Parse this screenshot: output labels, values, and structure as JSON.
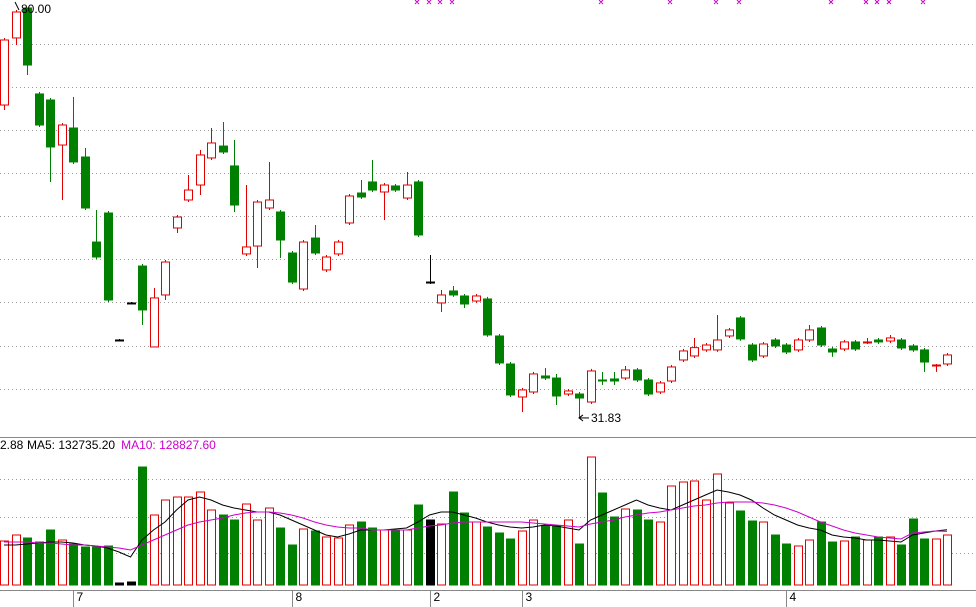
{
  "chart_data": {
    "type": "candlestick",
    "categories": [
      null,
      null,
      null,
      null,
      null,
      null,
      "7",
      null,
      null,
      null,
      null,
      null,
      null,
      null,
      null,
      null,
      null,
      null,
      null,
      null,
      null,
      null,
      null,
      null,
      null,
      "8",
      null,
      null,
      null,
      null,
      null,
      null,
      null,
      null,
      null,
      null,
      null,
      "2",
      null,
      null,
      null,
      null,
      null,
      null,
      null,
      "3",
      null,
      null,
      null,
      null,
      null,
      null,
      null,
      null,
      null,
      null,
      null,
      null,
      null,
      null,
      null,
      null,
      null,
      null,
      null,
      null,
      null,
      null,
      "4",
      null,
      null,
      null,
      null,
      null,
      null,
      null,
      null,
      null,
      null,
      null,
      null,
      null,
      null
    ],
    "open": [
      68.6,
      76.48,
      80.0,
      69.9,
      69.19,
      63.9,
      65.9,
      62.49,
      52.5,
      55.91,
      40.99,
      45.34,
      49.68,
      40.17,
      46.28,
      54.15,
      57.44,
      59.2,
      62.38,
      63.78,
      61.44,
      51.1,
      52.03,
      56.5,
      56.03,
      51.21,
      46.98,
      52.97,
      49.22,
      51.1,
      54.74,
      58.26,
      59.56,
      58.38,
      59.09,
      57.67,
      59.56,
      47.8,
      45.34,
      46.75,
      46.16,
      45.57,
      45.81,
      41.46,
      38.17,
      34.29,
      34.88,
      36.76,
      36.52,
      34.64,
      34.64,
      33.7,
      36.29,
      36.41,
      36.52,
      37.47,
      36.29,
      34.88,
      36.17,
      38.64,
      39.11,
      39.82,
      39.82,
      41.46,
      43.58,
      40.4,
      39.11,
      40.99,
      40.4,
      39.82,
      40.99,
      42.4,
      39.93,
      39.93,
      40.76,
      40.64,
      40.99,
      40.87,
      40.99,
      40.29,
      39.82,
      37.94,
      38.17
    ],
    "high": [
      76.48,
      79.77,
      80.0,
      70.13,
      69.42,
      66.49,
      69.54,
      63.55,
      56.26,
      56.14,
      41.1,
      45.46,
      49.92,
      47.1,
      50.39,
      55.68,
      60.38,
      63.32,
      65.9,
      66.6,
      64.49,
      59.2,
      57.44,
      61.91,
      56.26,
      51.45,
      52.74,
      54.5,
      50.98,
      52.74,
      58.15,
      59.79,
      62.14,
      59.44,
      59.32,
      60.73,
      59.79,
      50.98,
      46.87,
      47.34,
      46.4,
      46.4,
      46.05,
      41.7,
      38.4,
      35.35,
      37.24,
      37.7,
      37.0,
      35.23,
      34.88,
      37.59,
      37.24,
      37.24,
      37.94,
      37.7,
      36.52,
      36.17,
      38.05,
      39.94,
      41.23,
      40.64,
      43.93,
      42.4,
      43.81,
      40.64,
      40.76,
      41.23,
      40.64,
      41.23,
      42.75,
      42.64,
      40.17,
      40.99,
      40.99,
      41.23,
      41.23,
      41.58,
      41.23,
      40.52,
      40.05,
      38.17,
      39.46
    ],
    "low": [
      68.02,
      75.65,
      72.13,
      66.02,
      59.56,
      57.44,
      61.67,
      56.26,
      50.51,
      45.46,
      40.88,
      45.22,
      42.75,
      40.17,
      45.69,
      53.56,
      57.2,
      58.03,
      62.14,
      62.84,
      56.03,
      50.86,
      49.45,
      56.26,
      50.62,
      47.57,
      46.75,
      50.98,
      48.98,
      50.86,
      54.5,
      57.56,
      58.38,
      55.09,
      58.38,
      57.44,
      53.09,
      47.57,
      44.28,
      46.05,
      44.75,
      45.34,
      41.35,
      38.05,
      34.29,
      32.53,
      34.64,
      36.29,
      33.35,
      34.41,
      31.83,
      33.47,
      35.7,
      35.7,
      36.29,
      36.05,
      34.41,
      34.64,
      35.94,
      38.4,
      38.88,
      39.59,
      39.59,
      41.23,
      40.88,
      38.4,
      38.88,
      40.05,
      39.35,
      39.59,
      40.76,
      40.17,
      39.0,
      39.7,
      39.7,
      40.52,
      40.52,
      40.64,
      39.82,
      39.59,
      37.24,
      37.24,
      37.94
    ],
    "close": [
      76.24,
      79.53,
      73.3,
      66.25,
      63.67,
      66.25,
      61.91,
      56.5,
      50.74,
      45.69,
      40.99,
      45.34,
      44.52,
      45.93,
      50.15,
      55.44,
      58.61,
      62.73,
      64.14,
      63.08,
      56.85,
      51.92,
      57.2,
      57.44,
      52.74,
      47.8,
      52.5,
      51.21,
      50.74,
      52.5,
      57.91,
      57.79,
      58.61,
      59.2,
      58.61,
      59.2,
      53.33,
      47.8,
      46.28,
      46.28,
      45.22,
      46.16,
      41.58,
      38.29,
      34.53,
      35.12,
      37.0,
      36.52,
      34.41,
      35.0,
      34.17,
      37.35,
      36.17,
      36.17,
      37.47,
      36.29,
      34.64,
      35.94,
      37.82,
      39.7,
      40.09,
      40.4,
      40.99,
      42.17,
      41.11,
      38.64,
      40.52,
      40.29,
      39.58,
      40.99,
      42.17,
      40.4,
      39.58,
      40.76,
      39.93,
      40.76,
      40.76,
      41.23,
      40.05,
      39.82,
      38.4,
      38.05,
      39.23
    ],
    "ylim": [
      29.59,
      80.94
    ],
    "ygrid": [
      75.77,
      70.72,
      65.67,
      60.61,
      55.56,
      50.51,
      45.45,
      40.29,
      35.23
    ],
    "grid": true,
    "high_label": "80.00",
    "low_label": "31.83",
    "up_color": "#e00000",
    "down_color": "#008000",
    "doji_color": "#000000",
    "volume": {
      "header": "2.88",
      "values": [
        105600,
        120000,
        112800,
        103200,
        132000,
        108000,
        98400,
        91200,
        91200,
        93600,
        4800,
        7200,
        283200,
        168000,
        204000,
        211200,
        211200,
        223200,
        180000,
        168000,
        156000,
        194400,
        156000,
        184800,
        136800,
        96000,
        134400,
        129600,
        115200,
        112800,
        144000,
        151200,
        136800,
        132000,
        132000,
        132000,
        192000,
        156000,
        146400,
        223200,
        172800,
        151200,
        139200,
        124800,
        110400,
        129600,
        156000,
        141600,
        141600,
        156000,
        98400,
        307200,
        220800,
        163200,
        182400,
        180000,
        156000,
        151200,
        237600,
        247200,
        249600,
        204000,
        266400,
        196800,
        177600,
        153600,
        151200,
        120000,
        98400,
        93600,
        108000,
        151200,
        103200,
        105600,
        115200,
        108000,
        115200,
        115200,
        96000,
        158400,
        110400,
        110400,
        120000
      ],
      "ylim": [
        0,
        348000
      ],
      "ygrid": [
        76800,
        163200,
        254400
      ],
      "series": [
        {
          "name": "MA5: 132735.20",
          "color": "#000000",
          "values": [
            96000,
            96000,
            98400,
            100800,
            103200,
            103200,
            100800,
            96000,
            93600,
            88800,
            79200,
            67200,
            108000,
            132000,
            151200,
            180000,
            204000,
            211200,
            204000,
            192000,
            184800,
            180000,
            175200,
            175200,
            168000,
            156000,
            144000,
            132000,
            120000,
            115200,
            122400,
            132000,
            132000,
            132000,
            134400,
            136800,
            151200,
            168000,
            175200,
            175200,
            168000,
            160800,
            151200,
            144000,
            139200,
            136800,
            139200,
            144000,
            141600,
            136800,
            132000,
            156000,
            168000,
            180000,
            192000,
            204000,
            192000,
            184800,
            180000,
            192000,
            204000,
            216000,
            228000,
            223200,
            216000,
            204000,
            184800,
            168000,
            156000,
            144000,
            136800,
            132000,
            120000,
            115200,
            112800,
            108000,
            108000,
            105600,
            103200,
            120000,
            124800,
            129600,
            132735.2
          ]
        },
        {
          "name": "MA10: 128827.60",
          "color": "#cc00cc",
          "values": [
            103200,
            103200,
            103200,
            100800,
            100800,
            98400,
            96000,
            96000,
            93600,
            91200,
            88800,
            84000,
            96000,
            108000,
            120000,
            132000,
            144000,
            151200,
            156000,
            160800,
            168000,
            172800,
            175200,
            175200,
            172800,
            168000,
            160800,
            151200,
            144000,
            139200,
            136800,
            136800,
            132000,
            132000,
            132000,
            132000,
            136800,
            141600,
            144000,
            148800,
            151200,
            151200,
            151200,
            151200,
            151200,
            151200,
            148800,
            146400,
            144000,
            141600,
            139200,
            146400,
            151200,
            156000,
            163200,
            168000,
            172800,
            175200,
            180000,
            184800,
            189600,
            192000,
            196800,
            199200,
            199200,
            199200,
            196800,
            192000,
            184800,
            175200,
            163200,
            151200,
            141600,
            132000,
            124800,
            120000,
            115200,
            112800,
            110400,
            124800,
            127200,
            129600,
            128827.6
          ]
        }
      ]
    }
  }
}
